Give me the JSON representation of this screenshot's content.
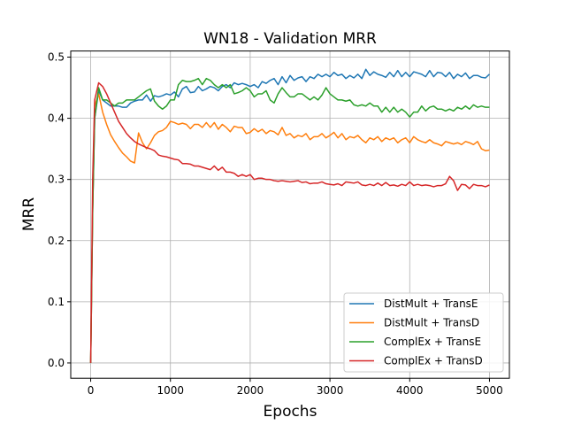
{
  "chart_data": {
    "type": "line",
    "title": "WN18 - Validation MRR",
    "xlabel": "Epochs",
    "ylabel": "MRR",
    "xlim": [
      -250,
      5250
    ],
    "ylim": [
      -0.025,
      0.51
    ],
    "xticks": [
      0,
      1000,
      2000,
      3000,
      4000,
      5000
    ],
    "xtick_labels": [
      "0",
      "1000",
      "2000",
      "3000",
      "4000",
      "5000"
    ],
    "yticks": [
      0.0,
      0.1,
      0.2,
      0.3,
      0.4,
      0.5
    ],
    "ytick_labels": [
      "0.0",
      "0.1",
      "0.2",
      "0.3",
      "0.4",
      "0.5"
    ],
    "grid": true,
    "legend_position": "lower-right",
    "series": [
      {
        "name": "DistMult + TransE",
        "color": "#1f77b4",
        "x": [
          0,
          25,
          50,
          100,
          150,
          200,
          250,
          300,
          350,
          400,
          450,
          500,
          550,
          600,
          650,
          700,
          750,
          800,
          850,
          900,
          950,
          1000,
          1050,
          1100,
          1150,
          1200,
          1250,
          1300,
          1350,
          1400,
          1450,
          1500,
          1550,
          1600,
          1650,
          1700,
          1750,
          1800,
          1850,
          1900,
          1950,
          2000,
          2050,
          2100,
          2150,
          2200,
          2250,
          2300,
          2350,
          2400,
          2450,
          2500,
          2550,
          2600,
          2650,
          2700,
          2750,
          2800,
          2850,
          2900,
          2950,
          3000,
          3050,
          3100,
          3150,
          3200,
          3250,
          3300,
          3350,
          3400,
          3450,
          3500,
          3550,
          3600,
          3650,
          3700,
          3750,
          3800,
          3850,
          3900,
          3950,
          4000,
          4050,
          4100,
          4150,
          4200,
          4250,
          4300,
          4350,
          4400,
          4450,
          4500,
          4550,
          4600,
          4650,
          4700,
          4750,
          4800,
          4850,
          4900,
          4950,
          5000
        ],
        "values": [
          0.0,
          0.25,
          0.4,
          0.445,
          0.43,
          0.425,
          0.42,
          0.42,
          0.42,
          0.418,
          0.418,
          0.425,
          0.428,
          0.43,
          0.43,
          0.438,
          0.428,
          0.437,
          0.435,
          0.437,
          0.44,
          0.438,
          0.443,
          0.435,
          0.448,
          0.452,
          0.442,
          0.443,
          0.452,
          0.445,
          0.448,
          0.452,
          0.45,
          0.445,
          0.452,
          0.455,
          0.45,
          0.458,
          0.455,
          0.457,
          0.455,
          0.452,
          0.455,
          0.45,
          0.46,
          0.457,
          0.462,
          0.465,
          0.455,
          0.468,
          0.458,
          0.47,
          0.462,
          0.466,
          0.468,
          0.46,
          0.468,
          0.465,
          0.472,
          0.468,
          0.472,
          0.468,
          0.475,
          0.47,
          0.472,
          0.465,
          0.47,
          0.466,
          0.472,
          0.465,
          0.48,
          0.47,
          0.476,
          0.472,
          0.47,
          0.467,
          0.475,
          0.468,
          0.478,
          0.468,
          0.475,
          0.468,
          0.476,
          0.474,
          0.472,
          0.468,
          0.478,
          0.468,
          0.475,
          0.474,
          0.468,
          0.475,
          0.465,
          0.472,
          0.468,
          0.474,
          0.465,
          0.47,
          0.47,
          0.467,
          0.466,
          0.472
        ]
      },
      {
        "name": "DistMult + TransD",
        "color": "#ff7f0e",
        "x": [
          0,
          25,
          50,
          100,
          150,
          200,
          250,
          300,
          350,
          400,
          450,
          500,
          550,
          600,
          650,
          700,
          750,
          800,
          850,
          900,
          950,
          1000,
          1050,
          1100,
          1150,
          1200,
          1250,
          1300,
          1350,
          1400,
          1450,
          1500,
          1550,
          1600,
          1650,
          1700,
          1750,
          1800,
          1850,
          1900,
          1950,
          2000,
          2050,
          2100,
          2150,
          2200,
          2250,
          2300,
          2350,
          2400,
          2450,
          2500,
          2550,
          2600,
          2650,
          2700,
          2750,
          2800,
          2850,
          2900,
          2950,
          3000,
          3050,
          3100,
          3150,
          3200,
          3250,
          3300,
          3350,
          3400,
          3450,
          3500,
          3550,
          3600,
          3650,
          3700,
          3750,
          3800,
          3850,
          3900,
          3950,
          4000,
          4050,
          4100,
          4150,
          4200,
          4250,
          4300,
          4350,
          4400,
          4450,
          4500,
          4550,
          4600,
          4650,
          4700,
          4750,
          4800,
          4850,
          4900,
          4950,
          5000
        ],
        "values": [
          0.0,
          0.25,
          0.42,
          0.44,
          0.41,
          0.39,
          0.373,
          0.362,
          0.352,
          0.343,
          0.337,
          0.33,
          0.327,
          0.376,
          0.36,
          0.35,
          0.36,
          0.372,
          0.378,
          0.38,
          0.385,
          0.395,
          0.393,
          0.39,
          0.392,
          0.39,
          0.383,
          0.39,
          0.39,
          0.385,
          0.393,
          0.385,
          0.393,
          0.382,
          0.39,
          0.385,
          0.378,
          0.387,
          0.385,
          0.385,
          0.375,
          0.377,
          0.383,
          0.378,
          0.382,
          0.375,
          0.38,
          0.378,
          0.373,
          0.385,
          0.372,
          0.375,
          0.368,
          0.372,
          0.37,
          0.375,
          0.365,
          0.37,
          0.37,
          0.375,
          0.368,
          0.372,
          0.377,
          0.368,
          0.375,
          0.365,
          0.37,
          0.368,
          0.372,
          0.365,
          0.36,
          0.368,
          0.365,
          0.37,
          0.362,
          0.368,
          0.365,
          0.368,
          0.36,
          0.365,
          0.368,
          0.36,
          0.37,
          0.365,
          0.362,
          0.36,
          0.365,
          0.36,
          0.358,
          0.355,
          0.362,
          0.36,
          0.358,
          0.36,
          0.357,
          0.362,
          0.36,
          0.357,
          0.362,
          0.35,
          0.347,
          0.348
        ]
      },
      {
        "name": "ComplEx + TransE",
        "color": "#2ca02c",
        "x": [
          0,
          25,
          50,
          100,
          150,
          200,
          250,
          300,
          350,
          400,
          450,
          500,
          550,
          600,
          650,
          700,
          750,
          800,
          850,
          900,
          950,
          1000,
          1050,
          1100,
          1150,
          1200,
          1250,
          1300,
          1350,
          1400,
          1450,
          1500,
          1550,
          1600,
          1650,
          1700,
          1750,
          1800,
          1850,
          1900,
          1950,
          2000,
          2050,
          2100,
          2150,
          2200,
          2250,
          2300,
          2350,
          2400,
          2450,
          2500,
          2550,
          2600,
          2650,
          2700,
          2750,
          2800,
          2850,
          2900,
          2950,
          3000,
          3050,
          3100,
          3150,
          3200,
          3250,
          3300,
          3350,
          3400,
          3450,
          3500,
          3550,
          3600,
          3650,
          3700,
          3750,
          3800,
          3850,
          3900,
          3950,
          4000,
          4050,
          4100,
          4150,
          4200,
          4250,
          4300,
          4350,
          4400,
          4450,
          4500,
          4550,
          4600,
          4650,
          4700,
          4750,
          4800,
          4850,
          4900,
          4950,
          5000
        ],
        "values": [
          0.0,
          0.25,
          0.4,
          0.45,
          0.43,
          0.43,
          0.425,
          0.42,
          0.425,
          0.425,
          0.43,
          0.43,
          0.43,
          0.435,
          0.44,
          0.445,
          0.448,
          0.428,
          0.42,
          0.415,
          0.42,
          0.43,
          0.43,
          0.455,
          0.462,
          0.46,
          0.46,
          0.462,
          0.465,
          0.455,
          0.465,
          0.462,
          0.455,
          0.45,
          0.455,
          0.45,
          0.455,
          0.44,
          0.442,
          0.445,
          0.45,
          0.445,
          0.435,
          0.44,
          0.44,
          0.445,
          0.43,
          0.425,
          0.44,
          0.45,
          0.442,
          0.435,
          0.435,
          0.44,
          0.44,
          0.435,
          0.43,
          0.435,
          0.43,
          0.438,
          0.45,
          0.44,
          0.435,
          0.43,
          0.43,
          0.428,
          0.43,
          0.422,
          0.42,
          0.422,
          0.42,
          0.425,
          0.42,
          0.42,
          0.41,
          0.418,
          0.41,
          0.418,
          0.41,
          0.415,
          0.41,
          0.402,
          0.41,
          0.41,
          0.42,
          0.412,
          0.418,
          0.42,
          0.415,
          0.415,
          0.412,
          0.415,
          0.412,
          0.418,
          0.415,
          0.42,
          0.415,
          0.422,
          0.418,
          0.42,
          0.418,
          0.418
        ]
      },
      {
        "name": "ComplEx + TransD",
        "color": "#d62728",
        "x": [
          0,
          25,
          50,
          100,
          150,
          200,
          250,
          300,
          350,
          400,
          450,
          500,
          550,
          600,
          650,
          700,
          750,
          800,
          850,
          900,
          950,
          1000,
          1050,
          1100,
          1150,
          1200,
          1250,
          1300,
          1350,
          1400,
          1450,
          1500,
          1550,
          1600,
          1650,
          1700,
          1750,
          1800,
          1850,
          1900,
          1950,
          2000,
          2050,
          2100,
          2150,
          2200,
          2250,
          2300,
          2350,
          2400,
          2450,
          2500,
          2550,
          2600,
          2650,
          2700,
          2750,
          2800,
          2850,
          2900,
          2950,
          3000,
          3050,
          3100,
          3150,
          3200,
          3250,
          3300,
          3350,
          3400,
          3450,
          3500,
          3550,
          3600,
          3650,
          3700,
          3750,
          3800,
          3850,
          3900,
          3950,
          4000,
          4050,
          4100,
          4150,
          4200,
          4250,
          4300,
          4350,
          4400,
          4450,
          4500,
          4550,
          4600,
          4650,
          4700,
          4750,
          4800,
          4850,
          4900,
          4950,
          5000
        ],
        "values": [
          0.0,
          0.3,
          0.43,
          0.458,
          0.452,
          0.44,
          0.425,
          0.41,
          0.395,
          0.385,
          0.375,
          0.368,
          0.362,
          0.358,
          0.355,
          0.352,
          0.35,
          0.347,
          0.34,
          0.338,
          0.337,
          0.335,
          0.333,
          0.332,
          0.326,
          0.326,
          0.325,
          0.322,
          0.322,
          0.32,
          0.318,
          0.316,
          0.322,
          0.315,
          0.32,
          0.312,
          0.312,
          0.31,
          0.305,
          0.308,
          0.305,
          0.308,
          0.3,
          0.302,
          0.302,
          0.3,
          0.3,
          0.298,
          0.297,
          0.298,
          0.297,
          0.296,
          0.297,
          0.298,
          0.295,
          0.296,
          0.293,
          0.294,
          0.294,
          0.296,
          0.293,
          0.292,
          0.291,
          0.293,
          0.29,
          0.296,
          0.295,
          0.294,
          0.296,
          0.291,
          0.29,
          0.292,
          0.29,
          0.294,
          0.29,
          0.295,
          0.29,
          0.291,
          0.289,
          0.292,
          0.29,
          0.296,
          0.29,
          0.292,
          0.29,
          0.291,
          0.29,
          0.288,
          0.29,
          0.29,
          0.293,
          0.305,
          0.298,
          0.282,
          0.292,
          0.291,
          0.285,
          0.292,
          0.29,
          0.29,
          0.288,
          0.291
        ]
      }
    ]
  }
}
